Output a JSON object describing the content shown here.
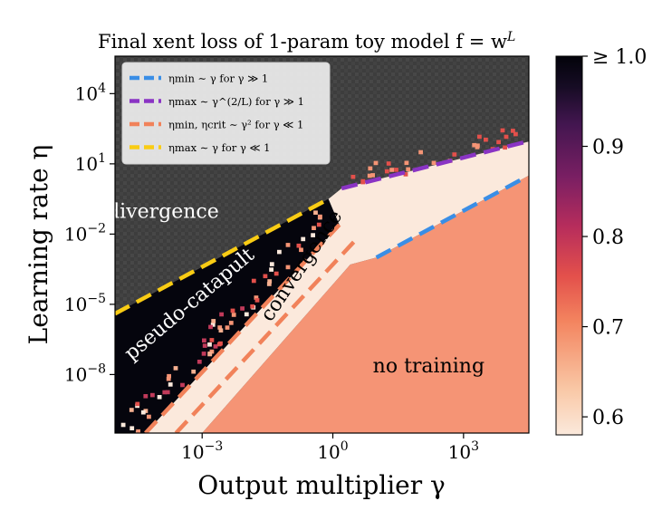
{
  "chart_data": {
    "type": "heatmap",
    "title": "Final xent loss of 1-param toy model f = w",
    "title_superscript": "L",
    "xlabel": "Output multiplier γ",
    "ylabel": "Learning rate η",
    "x_log10_range": [
      -5,
      4.5
    ],
    "y_log10_range": [
      -10.5,
      5.6
    ],
    "x_ticks": [
      {
        "log10": -3,
        "base": "10",
        "exp": "−3"
      },
      {
        "log10": 0,
        "base": "10",
        "exp": "0"
      },
      {
        "log10": 3,
        "base": "10",
        "exp": "3"
      }
    ],
    "y_ticks": [
      {
        "log10": 4,
        "base": "10",
        "exp": "4"
      },
      {
        "log10": 1,
        "base": "10",
        "exp": "1"
      },
      {
        "log10": -2,
        "base": "10",
        "exp": "−2"
      },
      {
        "log10": -5,
        "base": "10",
        "exp": "−5"
      },
      {
        "log10": -8,
        "base": "10",
        "exp": "−8"
      }
    ],
    "colorbar": {
      "min": 0.58,
      "max": 1.0,
      "ticks": [
        {
          "value": 1.0,
          "label": "≥ 1.0"
        },
        {
          "value": 0.9,
          "label": "0.9"
        },
        {
          "value": 0.8,
          "label": "0.8"
        },
        {
          "value": 0.7,
          "label": "0.7"
        },
        {
          "value": 0.6,
          "label": "0.6"
        }
      ],
      "colors": [
        "#fbe9dc",
        "#f9b892",
        "#f3845f",
        "#e3504b",
        "#b72d5c",
        "#7a1f63",
        "#431650",
        "#160c24",
        "#03030a"
      ]
    },
    "regions": [
      {
        "label": "divergence",
        "x_log10": -3.9,
        "y_log10": -1.3,
        "color": "#ffffff",
        "rotate": 0
      },
      {
        "label": "pseudo-catapult",
        "x_log10": -3.2,
        "y_log10": -5.2,
        "color": "#ffffff",
        "rotate": -40
      },
      {
        "label": "convergence",
        "x_log10": -0.6,
        "y_log10": -3.5,
        "color": "#000000",
        "rotate": -56
      },
      {
        "label": "no training",
        "x_log10": 2.2,
        "y_log10": -7.9,
        "color": "#000000",
        "rotate": 0
      }
    ],
    "series": [
      {
        "name": "η_min ~ γ for γ ≫ 1",
        "legend_label": "ηmin ∼ γ for γ ≫ 1",
        "color": "#3a8ee6",
        "x_log10": [
          1,
          4.45
        ],
        "y_log10": [
          -3,
          0.45
        ]
      },
      {
        "name": "η_max ~ γ^(2/L) for γ ≫ 1",
        "legend_label": "ηmax ∼ γ^(2/L) for γ ≫ 1",
        "color": "#8a34c4",
        "x_log10": [
          0.2,
          4.45
        ],
        "y_log10": [
          -0.05,
          1.95
        ]
      },
      {
        "name": "η_min, η_crit ~ γ² for γ ≪ 1",
        "legend_label": "ηmin, ηcrit ∼ γ² for γ ≪ 1",
        "color": "#f1825a",
        "x_log10": [
          -4.3,
          0.15
        ],
        "y_log10": [
          -10.5,
          -1.6
        ]
      },
      {
        "name": "η_min, η_crit ~ γ² for γ ≪ 1 (second)",
        "legend_label": "",
        "color": "#f1825a",
        "x_log10": [
          -3.6,
          0.6
        ],
        "y_log10": [
          -10.5,
          -2.1
        ]
      },
      {
        "name": "η_max ~ γ for γ ≪ 1",
        "legend_label": "ηmax ∼ γ for γ ≪ 1",
        "color": "#f9cc14",
        "x_log10": [
          -5,
          -0.1
        ],
        "y_log10": [
          -5.4,
          -0.5
        ]
      }
    ]
  }
}
